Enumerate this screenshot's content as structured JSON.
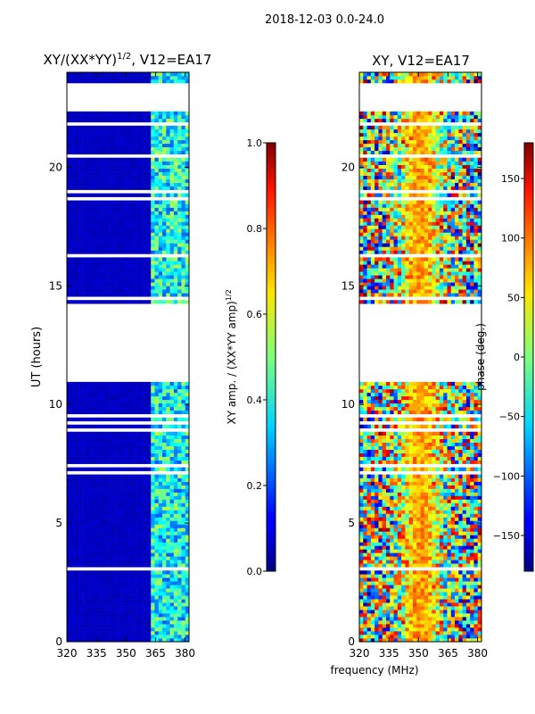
{
  "suptitle": "2018-12-03 0.0-24.0",
  "xlabel_shared": "frequency (MHz)",
  "chart_data": [
    {
      "type": "heatmap",
      "title_base": "XY/(XX*YY)",
      "title_exponent": "1/2",
      "title_suffix": ", V12=EA17",
      "xlabel": "frequency (MHz)",
      "ylabel": "UT (hours)",
      "xlim": [
        320,
        382
      ],
      "ylim": [
        0,
        24
      ],
      "xticks": [
        320,
        335,
        350,
        365,
        380
      ],
      "yticks": [
        0,
        5,
        10,
        15,
        20
      ],
      "colorbar": {
        "label_base": "XY amp. / (XX*YY amp)",
        "label_exponent": "1/2",
        "range": [
          0.0,
          1.0
        ],
        "ticks": [
          "0.0",
          "0.2",
          "0.4",
          "0.6",
          "0.8",
          "1.0"
        ],
        "colormap": "jet"
      },
      "blank_ut_ranges": [
        [
          11.0,
          14.2
        ],
        [
          22.4,
          23.5
        ]
      ],
      "hot_band_mhz": [
        362,
        382
      ],
      "typical_value_outside_band": 0.05,
      "typical_value_in_band": 0.35
    },
    {
      "type": "heatmap",
      "title": "XY, V12=EA17",
      "xlabel": "frequency (MHz)",
      "ylabel": "",
      "xlim": [
        320,
        382
      ],
      "ylim": [
        0,
        24
      ],
      "xticks": [
        320,
        335,
        350,
        365,
        380
      ],
      "yticks": [
        0,
        5,
        10,
        15,
        20
      ],
      "colorbar": {
        "label": "phase (deg.)",
        "range": [
          -180,
          180
        ],
        "ticks": [
          "−150",
          "−100",
          "−50",
          "0",
          "50",
          "100",
          "150"
        ],
        "colormap": "jet"
      },
      "blank_ut_ranges": [
        [
          11.0,
          14.2
        ],
        [
          22.4,
          23.5
        ]
      ],
      "typical_phase_center_band_deg": 80
    }
  ]
}
